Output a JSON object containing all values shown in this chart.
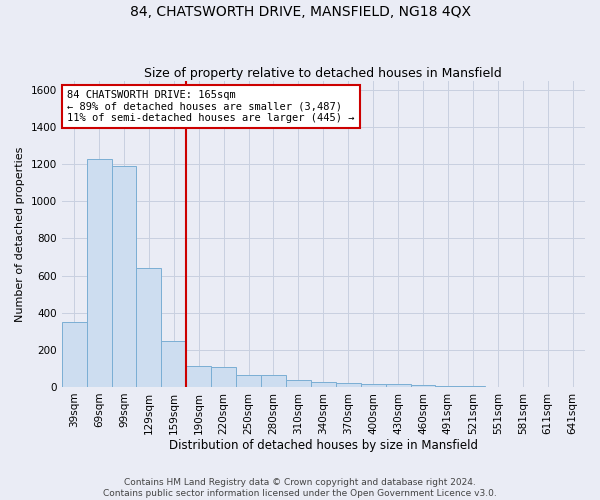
{
  "title": "84, CHATSWORTH DRIVE, MANSFIELD, NG18 4QX",
  "subtitle": "Size of property relative to detached houses in Mansfield",
  "xlabel": "Distribution of detached houses by size in Mansfield",
  "ylabel": "Number of detached properties",
  "categories": [
    "39sqm",
    "69sqm",
    "99sqm",
    "129sqm",
    "159sqm",
    "190sqm",
    "220sqm",
    "250sqm",
    "280sqm",
    "310sqm",
    "340sqm",
    "370sqm",
    "400sqm",
    "430sqm",
    "460sqm",
    "491sqm",
    "521sqm",
    "551sqm",
    "581sqm",
    "611sqm",
    "641sqm"
  ],
  "values": [
    350,
    1230,
    1190,
    640,
    250,
    115,
    110,
    65,
    65,
    35,
    25,
    20,
    15,
    15,
    10,
    5,
    3,
    2,
    1,
    1,
    1
  ],
  "bar_color": "#cdddf0",
  "bar_edge_color": "#7aaed4",
  "vline_color": "#cc0000",
  "vline_pos": 4.5,
  "annotation_text": "84 CHATSWORTH DRIVE: 165sqm\n← 89% of detached houses are smaller (3,487)\n11% of semi-detached houses are larger (445) →",
  "annotation_box_color": "#ffffff",
  "annotation_box_edge_color": "#cc0000",
  "ylim": [
    0,
    1650
  ],
  "yticks": [
    0,
    200,
    400,
    600,
    800,
    1000,
    1200,
    1400,
    1600
  ],
  "grid_color": "#c8d0e0",
  "background_color": "#eaecf5",
  "footer_text": "Contains HM Land Registry data © Crown copyright and database right 2024.\nContains public sector information licensed under the Open Government Licence v3.0.",
  "title_fontsize": 10,
  "subtitle_fontsize": 9,
  "annotation_fontsize": 7.5,
  "footer_fontsize": 6.5,
  "ylabel_fontsize": 8,
  "xlabel_fontsize": 8.5,
  "tick_fontsize": 7.5
}
